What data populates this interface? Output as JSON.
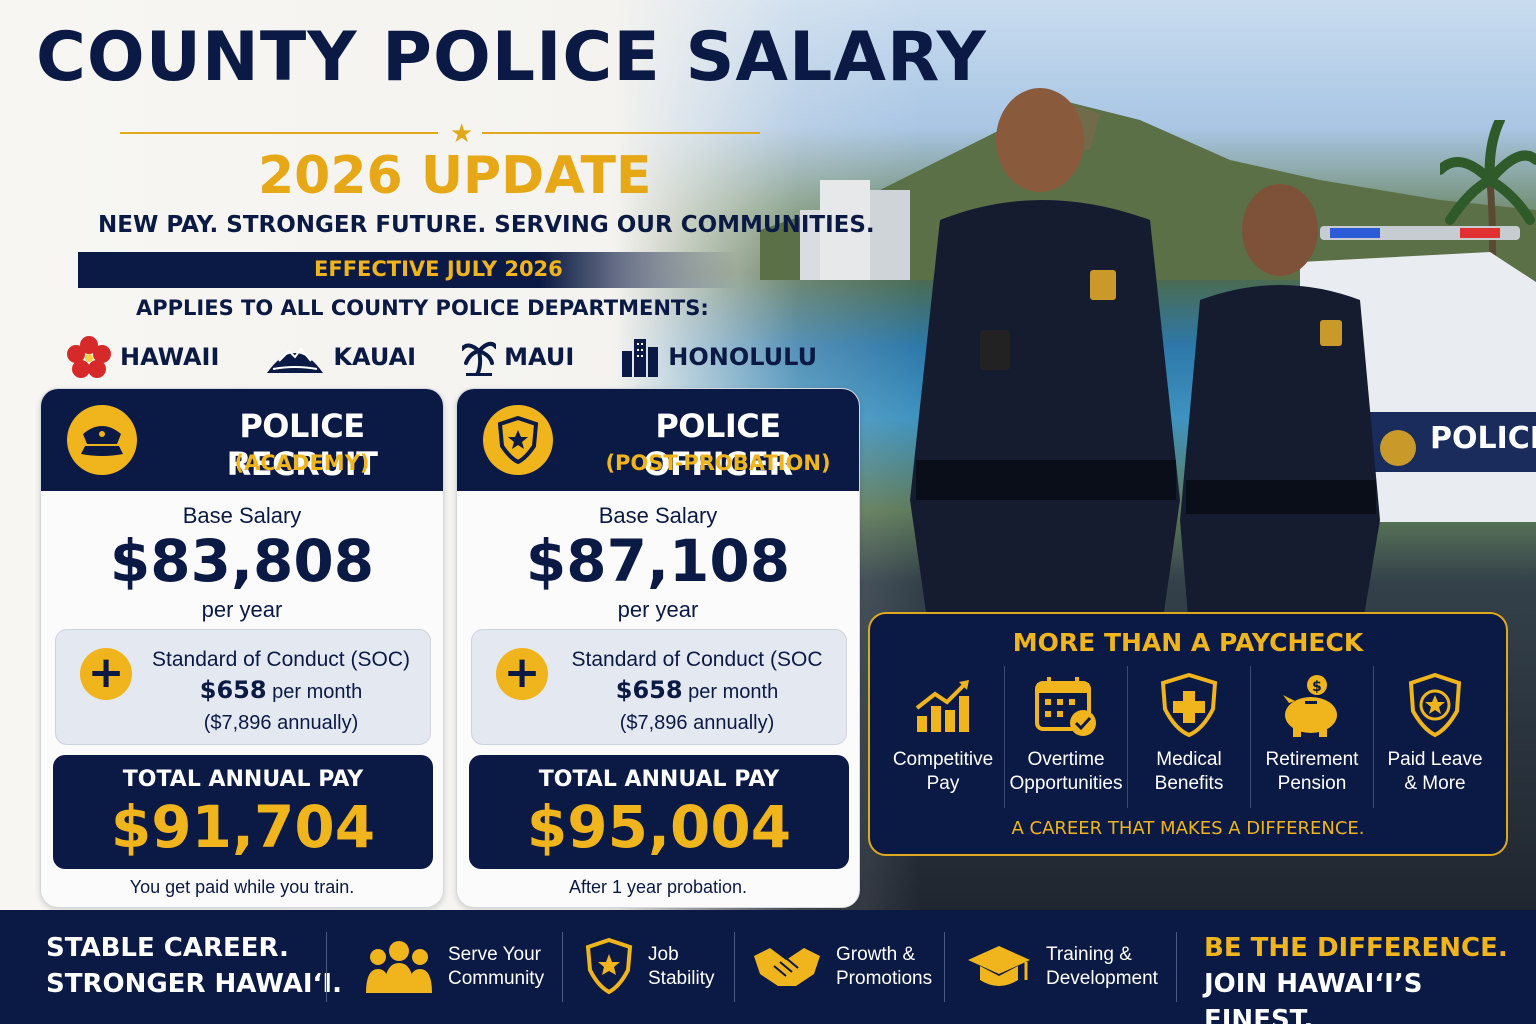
{
  "header": {
    "title": "COUNTY POLICE SALARY",
    "subtitle": "2026 UPDATE",
    "tagline": "NEW PAY.  STRONGER FUTURE.  SERVING OUR COMMUNITIES.",
    "effective": "EFFECTIVE JULY 2026",
    "applies": "APPLIES TO ALL COUNTY POLICE DEPARTMENTS:"
  },
  "counties": [
    {
      "name": "HAWAII",
      "icon": "hibiscus-icon"
    },
    {
      "name": "KAUAI",
      "icon": "mountain-icon"
    },
    {
      "name": "MAUI",
      "icon": "palm-tree-icon"
    },
    {
      "name": "HONOLULU",
      "icon": "city-buildings-icon"
    }
  ],
  "cards": [
    {
      "role": "POLICE RECRUIT",
      "phase": "(ACADEMY)",
      "icon": "police-cap-icon",
      "base_label": "Base Salary",
      "base_value": "$83,808",
      "per_year": "per year",
      "soc_label": "Standard of Conduct (SOC)",
      "soc_amount": "$658",
      "soc_unit": "per month",
      "soc_annual": "($7,896 annually)",
      "total_label": "TOTAL ANNUAL PAY",
      "total_value": "$91,704",
      "note": "You get paid while you train."
    },
    {
      "role": "POLICE OFFICER",
      "phase": "(POST-PROBATION)",
      "icon": "police-badge-icon",
      "base_label": "Base Salary",
      "base_value": "$87,108",
      "per_year": "per year",
      "soc_label": "Standard of Conduct (SOC",
      "soc_amount": "$658",
      "soc_unit": "per month",
      "soc_annual": "($7,896 annually)",
      "total_label": "TOTAL ANNUAL PAY",
      "total_value": "$95,004",
      "note": "After 1 year probation."
    }
  ],
  "scene": {
    "car_label": "POLICE"
  },
  "benefits": {
    "title": "MORE THAN A PAYCHECK",
    "items": [
      {
        "label": "Competitive\nPay",
        "icon": "bar-chart-growth-icon"
      },
      {
        "label": "Overtime\nOpportunities",
        "icon": "calendar-check-icon"
      },
      {
        "label": "Medical\nBenefits",
        "icon": "medical-shield-icon"
      },
      {
        "label": "Retirement\nPension",
        "icon": "piggy-bank-icon"
      },
      {
        "label": "Paid Leave\n& More",
        "icon": "badge-star-icon"
      }
    ],
    "footer": "A CAREER THAT MAKES A DIFFERENCE."
  },
  "footer": {
    "left_line1": "STABLE CAREER.",
    "left_line2": "STRONGER HAWAIʻI.",
    "items": [
      {
        "label": "Serve Your\nCommunity",
        "icon": "community-people-icon"
      },
      {
        "label": "Job\nStability",
        "icon": "shield-star-icon"
      },
      {
        "label": "Growth &\nPromotions",
        "icon": "handshake-icon"
      },
      {
        "label": "Training &\nDevelopment",
        "icon": "graduation-cap-icon"
      }
    ],
    "right_line1": "BE THE DIFFERENCE.",
    "right_line2": "JOIN HAWAIʻI’S FINEST."
  },
  "colors": {
    "navy": "#0b1a44",
    "gold": "#f0b41c"
  }
}
